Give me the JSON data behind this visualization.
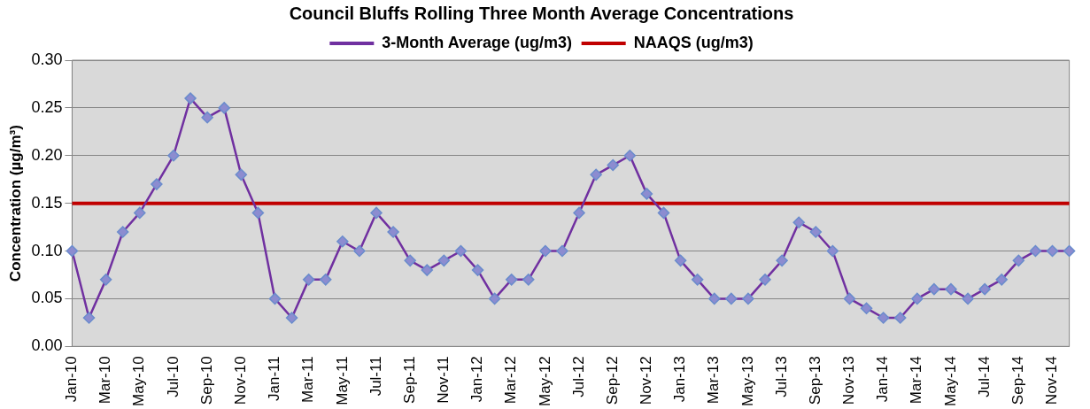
{
  "chart_data": {
    "type": "line",
    "title": "Council Bluffs Rolling Three Month Average Concentrations",
    "ylabel": "Concentration (µg/m³)",
    "categories": [
      "Jan-10",
      null,
      "Mar-10",
      null,
      "May-10",
      null,
      "Jul-10",
      null,
      "Sep-10",
      null,
      "Nov-10",
      null,
      "Jan-11",
      null,
      "Mar-11",
      null,
      "May-11",
      null,
      "Jul-11",
      null,
      "Sep-11",
      null,
      "Nov-11",
      null,
      "Jan-12",
      null,
      "Mar-12",
      null,
      "May-12",
      null,
      "Jul-12",
      null,
      "Sep-12",
      null,
      "Nov-12",
      null,
      "Jan-13",
      null,
      "Mar-13",
      null,
      "May-13",
      null,
      "Jul-13",
      null,
      "Sep-13",
      null,
      "Nov-13",
      null,
      "Jan-14",
      null,
      "Mar-14",
      null,
      "May-14",
      null,
      "Jul-14",
      null,
      "Sep-14",
      null,
      "Nov-14",
      null
    ],
    "series": [
      {
        "name": "3-Month Average (ug/m3)",
        "color": "#7030a0",
        "marker": "diamond",
        "values": [
          0.1,
          0.03,
          0.07,
          0.12,
          0.14,
          0.17,
          0.2,
          0.26,
          0.24,
          0.25,
          0.18,
          0.14,
          0.05,
          0.03,
          0.07,
          0.07,
          0.11,
          0.1,
          0.14,
          0.12,
          0.09,
          0.08,
          0.09,
          0.1,
          0.08,
          0.05,
          0.07,
          0.07,
          0.1,
          0.1,
          0.14,
          0.18,
          0.19,
          0.2,
          0.16,
          0.14,
          0.09,
          0.07,
          0.05,
          0.05,
          0.05,
          0.07,
          0.09,
          0.13,
          0.12,
          0.1,
          0.05,
          0.04,
          0.03,
          0.03,
          0.05,
          0.06,
          0.06,
          0.05,
          0.06,
          0.07,
          0.09,
          0.1,
          0.1,
          0.1
        ]
      },
      {
        "name": "NAAQS (ug/m3)",
        "color": "#c00000",
        "marker": "none",
        "values": [
          0.15,
          0.15,
          0.15,
          0.15,
          0.15,
          0.15,
          0.15,
          0.15,
          0.15,
          0.15,
          0.15,
          0.15,
          0.15,
          0.15,
          0.15,
          0.15,
          0.15,
          0.15,
          0.15,
          0.15,
          0.15,
          0.15,
          0.15,
          0.15,
          0.15,
          0.15,
          0.15,
          0.15,
          0.15,
          0.15,
          0.15,
          0.15,
          0.15,
          0.15,
          0.15,
          0.15,
          0.15,
          0.15,
          0.15,
          0.15,
          0.15,
          0.15,
          0.15,
          0.15,
          0.15,
          0.15,
          0.15,
          0.15,
          0.15,
          0.15,
          0.15,
          0.15,
          0.15,
          0.15,
          0.15,
          0.15,
          0.15,
          0.15,
          0.15,
          0.15
        ]
      }
    ],
    "ylim": [
      0,
      0.3
    ],
    "yticks": [
      {
        "value": 0,
        "label": "0.00"
      },
      {
        "value": 0.05,
        "label": "0.05"
      },
      {
        "value": 0.1,
        "label": "0.10"
      },
      {
        "value": 0.15,
        "label": "0.15"
      },
      {
        "value": 0.2,
        "label": "0.20"
      },
      {
        "value": 0.25,
        "label": "0.25"
      },
      {
        "value": 0.3,
        "label": "0.30"
      }
    ],
    "grid": "y",
    "legend": "top"
  }
}
